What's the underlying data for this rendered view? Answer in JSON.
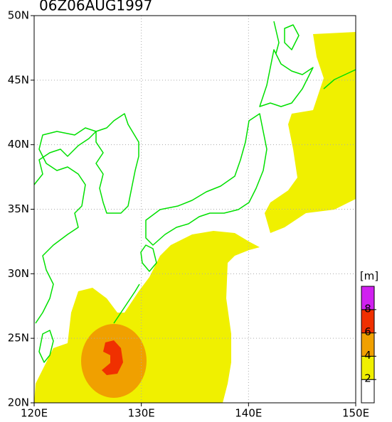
{
  "map": {
    "title": "06Z06AUG1997",
    "xlim": [
      120,
      150
    ],
    "ylim": [
      20,
      50
    ],
    "xticks": [
      {
        "value": 120,
        "label": "120E"
      },
      {
        "value": 130,
        "label": "130E"
      },
      {
        "value": 140,
        "label": "140E"
      },
      {
        "value": 150,
        "label": "150E"
      }
    ],
    "yticks": [
      {
        "value": 20,
        "label": "20N"
      },
      {
        "value": 25,
        "label": "25N"
      },
      {
        "value": 30,
        "label": "30N"
      },
      {
        "value": 35,
        "label": "35N"
      },
      {
        "value": 40,
        "label": "40N"
      },
      {
        "value": 45,
        "label": "45N"
      },
      {
        "value": 50,
        "label": "50N"
      }
    ],
    "grid": true,
    "colorbar": {
      "unit": "[m]",
      "levels": [
        2,
        4,
        6,
        8
      ],
      "colors": [
        "#ffffff",
        "#f0f000",
        "#f0a000",
        "#f03000",
        "#d020f0"
      ]
    }
  }
}
